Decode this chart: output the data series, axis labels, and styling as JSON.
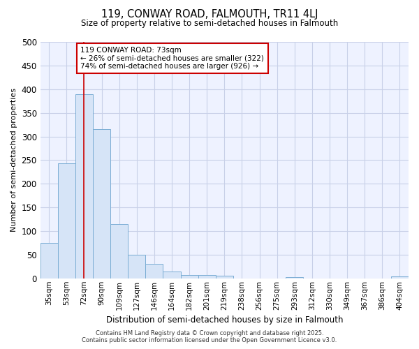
{
  "title1": "119, CONWAY ROAD, FALMOUTH, TR11 4LJ",
  "title2": "Size of property relative to semi-detached houses in Falmouth",
  "xlabel": "Distribution of semi-detached houses by size in Falmouth",
  "ylabel": "Number of semi-detached properties",
  "categories": [
    "35sqm",
    "53sqm",
    "72sqm",
    "90sqm",
    "109sqm",
    "127sqm",
    "146sqm",
    "164sqm",
    "182sqm",
    "201sqm",
    "219sqm",
    "238sqm",
    "256sqm",
    "275sqm",
    "293sqm",
    "312sqm",
    "330sqm",
    "349sqm",
    "367sqm",
    "386sqm",
    "404sqm"
  ],
  "values": [
    75,
    243,
    390,
    315,
    115,
    50,
    30,
    15,
    7,
    7,
    6,
    0,
    0,
    0,
    2,
    0,
    0,
    0,
    0,
    0,
    4
  ],
  "bar_color": "#d6e4f7",
  "bar_edge_color": "#7aadd4",
  "redline_index": 2,
  "annotation_text": "119 CONWAY ROAD: 73sqm\n← 26% of semi-detached houses are smaller (322)\n74% of semi-detached houses are larger (926) →",
  "annotation_box_color": "#ffffff",
  "annotation_box_edge": "#cc0000",
  "redline_color": "#cc0000",
  "ylim": [
    0,
    500
  ],
  "yticks": [
    0,
    50,
    100,
    150,
    200,
    250,
    300,
    350,
    400,
    450,
    500
  ],
  "footer": "Contains HM Land Registry data © Crown copyright and database right 2025.\nContains public sector information licensed under the Open Government Licence v3.0.",
  "bg_color": "#ffffff",
  "plot_bg_color": "#eef2ff",
  "grid_color": "#c8d0e8"
}
